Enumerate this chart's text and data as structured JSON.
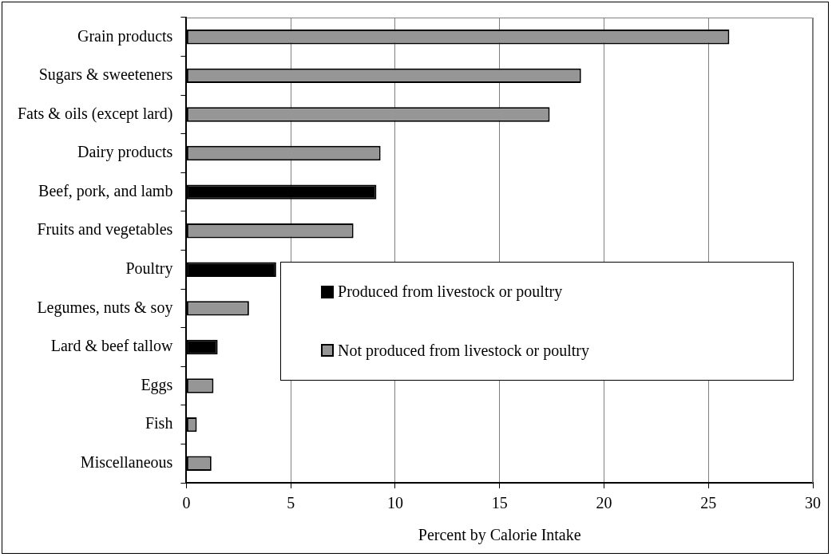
{
  "chart_data": {
    "type": "bar",
    "orientation": "horizontal",
    "xlabel": "Percent by Calorie Intake",
    "categories": [
      "Grain products",
      "Sugars & sweeteners",
      "Fats & oils (except lard)",
      "Dairy products",
      "Beef, pork, and lamb",
      "Fruits and vegetables",
      "Poultry",
      "Legumes, nuts & soy",
      "Lard & beef tallow",
      "Eggs",
      "Fish",
      "Miscellaneous"
    ],
    "series": [
      {
        "name": "Produced from livestock or poultry",
        "color": "#000000",
        "values": [
          null,
          null,
          null,
          null,
          9.1,
          null,
          4.3,
          null,
          1.5,
          null,
          null,
          null
        ]
      },
      {
        "name": "Not produced from livestock or poultry",
        "color": "#969696",
        "values": [
          26.0,
          18.9,
          17.4,
          9.3,
          null,
          8.0,
          null,
          3.0,
          null,
          1.3,
          0.5,
          1.2
        ]
      }
    ],
    "xlim": [
      0,
      30
    ],
    "xticks": [
      0,
      5,
      10,
      15,
      20,
      25,
      30
    ],
    "grid": "x",
    "legend": "center"
  }
}
